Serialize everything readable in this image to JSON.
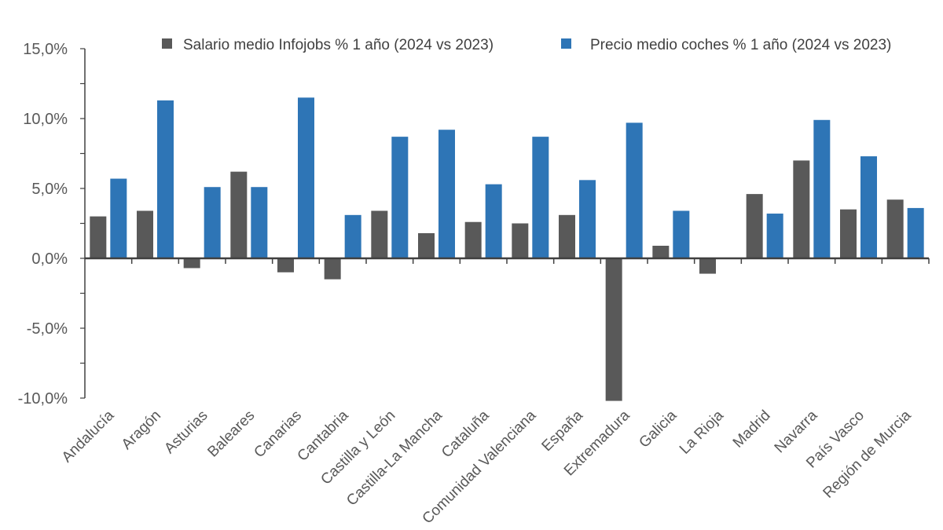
{
  "chart_data": {
    "type": "bar",
    "title": "",
    "xlabel": "",
    "ylabel": "",
    "ylim": [
      -10,
      15
    ],
    "yticks": [
      15,
      10,
      5,
      0,
      -5,
      -10
    ],
    "ytick_labels": [
      "15,0%",
      "10,0%",
      "5,0%",
      "0,0%",
      "-5,0%",
      "-10,0%"
    ],
    "grid": false,
    "legend_position": "top",
    "categories": [
      "Andalucía",
      "Aragón",
      "Asturias",
      "Baleares",
      "Canarias",
      "Cantabria",
      "Castilla y León",
      "Castilla-La Mancha",
      "Cataluña",
      "Comunidad Valenciana",
      "España",
      "Extremadura",
      "Galicia",
      "La Rioja",
      "Madrid",
      "Navarra",
      "País Vasco",
      "Región de Murcia"
    ],
    "series": [
      {
        "name": "Salario medio Infojobs % 1 año (2024 vs 2023)",
        "color": "#595959",
        "values": [
          3.0,
          3.4,
          -0.7,
          6.2,
          -1.0,
          -1.5,
          3.4,
          1.8,
          2.6,
          2.5,
          3.1,
          -10.2,
          0.9,
          -1.1,
          4.6,
          7.0,
          3.5,
          4.2
        ]
      },
      {
        "name": "Precio medio coches % 1 año (2024 vs 2023)",
        "color": "#2E75B6",
        "values": [
          5.7,
          11.3,
          5.1,
          5.1,
          11.5,
          3.1,
          8.7,
          9.2,
          5.3,
          8.7,
          5.6,
          9.7,
          3.4,
          null,
          3.2,
          9.9,
          7.3,
          3.6
        ]
      }
    ]
  }
}
